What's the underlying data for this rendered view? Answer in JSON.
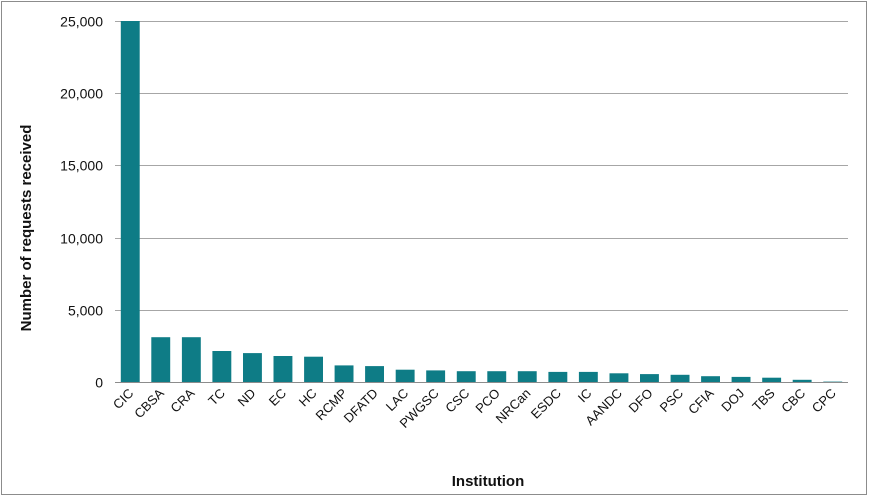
{
  "chart_data": {
    "type": "bar",
    "title": "",
    "xlabel": "Institution",
    "ylabel": "Number of requests received",
    "categories": [
      "CIC",
      "CBSA",
      "CRA",
      "TC",
      "ND",
      "EC",
      "HC",
      "RCMP",
      "DFATD",
      "LAC",
      "PWGSC",
      "CSC",
      "PCO",
      "NRCan",
      "ESDC",
      "IC",
      "AANDC",
      "DFO",
      "PSC",
      "CFIA",
      "DOJ",
      "TBS",
      "CBC",
      "CPC"
    ],
    "values": [
      25000,
      3100,
      3100,
      2150,
      2000,
      1800,
      1750,
      1150,
      1100,
      850,
      800,
      750,
      750,
      750,
      700,
      700,
      600,
      550,
      500,
      400,
      350,
      300,
      150,
      30
    ],
    "yticks": [
      "0",
      "5,000",
      "10,000",
      "15,000",
      "20,000",
      "25,000"
    ],
    "ylim": [
      0,
      25000
    ],
    "grid": true,
    "legend": "none",
    "colors": {
      "bar": "#0e7c86",
      "grid": "#a6a6a6",
      "axis": "#8c8c8c"
    }
  }
}
